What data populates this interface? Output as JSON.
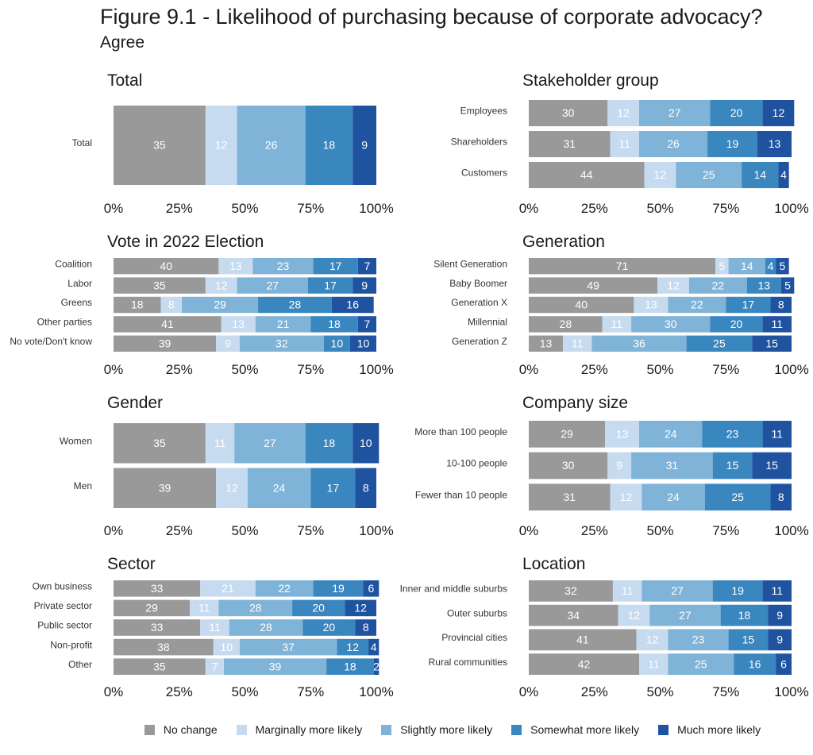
{
  "title": "Figure 9.1 - Likelihood of purchasing because of corporate advocacy?",
  "subtitle": "Agree",
  "legend": {
    "items": [
      {
        "label": "No change",
        "color": "#999999"
      },
      {
        "label": "Marginally more likely",
        "color": "#c6dbef"
      },
      {
        "label": "Slightly more likely",
        "color": "#7fb3d8"
      },
      {
        "label": "Somewhat more likely",
        "color": "#3a86bf"
      },
      {
        "label": "Much more likely",
        "color": "#1f53a0"
      }
    ]
  },
  "chart_data": [
    {
      "type": "bar",
      "orientation": "horizontal",
      "stacked": true,
      "title": "Total",
      "categories": [
        "Total"
      ],
      "series": [
        {
          "name": "No change",
          "values": [
            35
          ]
        },
        {
          "name": "Marginally more likely",
          "values": [
            12
          ]
        },
        {
          "name": "Slightly more likely",
          "values": [
            26
          ]
        },
        {
          "name": "Somewhat more likely",
          "values": [
            18
          ]
        },
        {
          "name": "Much more likely",
          "values": [
            9
          ]
        }
      ],
      "xlim": [
        0,
        100
      ],
      "xticks": [
        "0%",
        "25%",
        "50%",
        "75%",
        "100%"
      ]
    },
    {
      "type": "bar",
      "orientation": "horizontal",
      "stacked": true,
      "title": "Stakeholder group",
      "categories": [
        "Employees",
        "Shareholders",
        "Customers"
      ],
      "series": [
        {
          "name": "No change",
          "values": [
            30,
            31,
            44
          ]
        },
        {
          "name": "Marginally more likely",
          "values": [
            12,
            11,
            12
          ]
        },
        {
          "name": "Slightly more likely",
          "values": [
            27,
            26,
            25
          ]
        },
        {
          "name": "Somewhat more likely",
          "values": [
            20,
            19,
            14
          ]
        },
        {
          "name": "Much more likely",
          "values": [
            12,
            13,
            4
          ]
        }
      ],
      "xlim": [
        0,
        100
      ],
      "xticks": [
        "0%",
        "25%",
        "50%",
        "75%",
        "100%"
      ]
    },
    {
      "type": "bar",
      "orientation": "horizontal",
      "stacked": true,
      "title": "Vote in 2022 Election",
      "categories": [
        "Coalition",
        "Labor",
        "Greens",
        "Other parties",
        "No vote/Don't know"
      ],
      "series": [
        {
          "name": "No change",
          "values": [
            40,
            35,
            18,
            41,
            39
          ]
        },
        {
          "name": "Marginally more likely",
          "values": [
            13,
            12,
            8,
            13,
            9
          ]
        },
        {
          "name": "Slightly more likely",
          "values": [
            23,
            27,
            29,
            21,
            32
          ]
        },
        {
          "name": "Somewhat more likely",
          "values": [
            17,
            17,
            28,
            18,
            10
          ]
        },
        {
          "name": "Much more likely",
          "values": [
            7,
            9,
            16,
            7,
            10
          ]
        }
      ],
      "xlim": [
        0,
        100
      ],
      "xticks": [
        "0%",
        "25%",
        "50%",
        "75%",
        "100%"
      ]
    },
    {
      "type": "bar",
      "orientation": "horizontal",
      "stacked": true,
      "title": "Generation",
      "categories": [
        "Silent Generation",
        "Baby Boomer",
        "Generation X",
        "Millennial",
        "Generation Z"
      ],
      "series": [
        {
          "name": "No change",
          "values": [
            71,
            49,
            40,
            28,
            13
          ]
        },
        {
          "name": "Marginally more likely",
          "values": [
            5,
            12,
            13,
            11,
            11
          ]
        },
        {
          "name": "Slightly more likely",
          "values": [
            14,
            22,
            22,
            30,
            36
          ]
        },
        {
          "name": "Somewhat more likely",
          "values": [
            4,
            13,
            17,
            20,
            25
          ]
        },
        {
          "name": "Much more likely",
          "values": [
            5,
            5,
            8,
            11,
            15
          ]
        }
      ],
      "xlim": [
        0,
        100
      ],
      "xticks": [
        "0%",
        "25%",
        "50%",
        "75%",
        "100%"
      ]
    },
    {
      "type": "bar",
      "orientation": "horizontal",
      "stacked": true,
      "title": "Gender",
      "categories": [
        "Women",
        "Men"
      ],
      "series": [
        {
          "name": "No change",
          "values": [
            35,
            39
          ]
        },
        {
          "name": "Marginally more likely",
          "values": [
            11,
            12
          ]
        },
        {
          "name": "Slightly more likely",
          "values": [
            27,
            24
          ]
        },
        {
          "name": "Somewhat more likely",
          "values": [
            18,
            17
          ]
        },
        {
          "name": "Much more likely",
          "values": [
            10,
            8
          ]
        }
      ],
      "xlim": [
        0,
        100
      ],
      "xticks": [
        "0%",
        "25%",
        "50%",
        "75%",
        "100%"
      ]
    },
    {
      "type": "bar",
      "orientation": "horizontal",
      "stacked": true,
      "title": "Company size",
      "categories": [
        "More than 100 people",
        "10-100 people",
        "Fewer than 10 people"
      ],
      "series": [
        {
          "name": "No change",
          "values": [
            29,
            30,
            31
          ]
        },
        {
          "name": "Marginally more likely",
          "values": [
            13,
            9,
            12
          ]
        },
        {
          "name": "Slightly more likely",
          "values": [
            24,
            31,
            24
          ]
        },
        {
          "name": "Somewhat more likely",
          "values": [
            23,
            15,
            25
          ]
        },
        {
          "name": "Much more likely",
          "values": [
            11,
            15,
            8
          ]
        }
      ],
      "xlim": [
        0,
        100
      ],
      "xticks": [
        "0%",
        "25%",
        "50%",
        "75%",
        "100%"
      ]
    },
    {
      "type": "bar",
      "orientation": "horizontal",
      "stacked": true,
      "title": "Sector",
      "categories": [
        "Own business",
        "Private sector",
        "Public sector",
        "Non-profit",
        "Other"
      ],
      "series": [
        {
          "name": "No change",
          "values": [
            33,
            29,
            33,
            38,
            35
          ]
        },
        {
          "name": "Marginally more likely",
          "values": [
            21,
            11,
            11,
            10,
            7
          ]
        },
        {
          "name": "Slightly more likely",
          "values": [
            22,
            28,
            28,
            37,
            39
          ]
        },
        {
          "name": "Somewhat more likely",
          "values": [
            19,
            20,
            20,
            12,
            18
          ]
        },
        {
          "name": "Much more likely",
          "values": [
            6,
            12,
            8,
            4,
            2
          ]
        }
      ],
      "xlim": [
        0,
        100
      ],
      "xticks": [
        "0%",
        "25%",
        "50%",
        "75%",
        "100%"
      ]
    },
    {
      "type": "bar",
      "orientation": "horizontal",
      "stacked": true,
      "title": "Location",
      "categories": [
        "Inner and middle suburbs",
        "Outer suburbs",
        "Provincial cities",
        "Rural communities"
      ],
      "series": [
        {
          "name": "No change",
          "values": [
            32,
            34,
            41,
            42
          ]
        },
        {
          "name": "Marginally more likely",
          "values": [
            11,
            12,
            12,
            11
          ]
        },
        {
          "name": "Slightly more likely",
          "values": [
            27,
            27,
            23,
            25
          ]
        },
        {
          "name": "Somewhat more likely",
          "values": [
            19,
            18,
            15,
            16
          ]
        },
        {
          "name": "Much more likely",
          "values": [
            11,
            9,
            9,
            6
          ]
        }
      ],
      "xlim": [
        0,
        100
      ],
      "xticks": [
        "0%",
        "25%",
        "50%",
        "75%",
        "100%"
      ]
    }
  ]
}
